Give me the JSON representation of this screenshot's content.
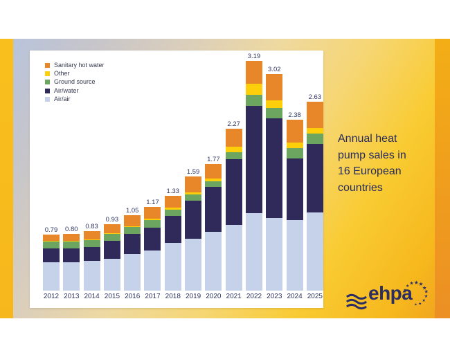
{
  "title": {
    "text": "Annual heat pump sales in 16 European countries"
  },
  "logo": {
    "text": "ehpa"
  },
  "colors": {
    "accent_gold": "#f6b81d",
    "accent_orange_strip": "#ec8f24",
    "card_blue": "#b6c3de",
    "text_navy": "#2e3560",
    "logo_navy": "#2b2d63",
    "panel_white": "#ffffff"
  },
  "chart_data": {
    "type": "bar",
    "stacked": true,
    "unit": "million units",
    "title": "",
    "xlabel": "",
    "ylabel": "",
    "grid": false,
    "legend_position": "top-left",
    "legend_order": [
      "Sanitary hot water",
      "Other",
      "Ground source",
      "Air/water",
      "Air/air"
    ],
    "categories": [
      "2012",
      "2013",
      "2014",
      "2015",
      "2016",
      "2017",
      "2018",
      "2019",
      "2020",
      "2021",
      "2022",
      "2023",
      "2024",
      "2025"
    ],
    "totals": [
      0.79,
      0.8,
      0.83,
      0.93,
      1.05,
      1.17,
      1.33,
      1.59,
      1.77,
      2.27,
      3.19,
      3.02,
      2.38,
      2.63
    ],
    "total_labels": [
      "0.79",
      "0.80",
      "0.83",
      "0.93",
      "1.05",
      "1.17",
      "1.33",
      "1.59",
      "1.77",
      "2.27",
      "3.19",
      "3.02",
      "2.38",
      "2.63"
    ],
    "series": [
      {
        "name": "Air/air",
        "color": "#c6d2ea",
        "values": [
          0.4,
          0.4,
          0.41,
          0.44,
          0.51,
          0.56,
          0.67,
          0.72,
          0.82,
          0.92,
          1.08,
          1.01,
          0.98,
          1.09
        ]
      },
      {
        "name": "Air/water",
        "color": "#2f2a59",
        "values": [
          0.19,
          0.19,
          0.19,
          0.25,
          0.28,
          0.32,
          0.38,
          0.53,
          0.63,
          0.92,
          1.49,
          1.39,
          0.86,
          0.95
        ]
      },
      {
        "name": "Ground source",
        "color": "#6ba55f",
        "values": [
          0.1,
          0.1,
          0.1,
          0.1,
          0.1,
          0.11,
          0.09,
          0.09,
          0.08,
          0.1,
          0.15,
          0.14,
          0.14,
          0.14
        ]
      },
      {
        "name": "Other",
        "color": "#fccf0a",
        "values": [
          0.01,
          0.01,
          0.01,
          0.01,
          0.01,
          0.02,
          0.03,
          0.03,
          0.04,
          0.08,
          0.15,
          0.11,
          0.08,
          0.08
        ]
      },
      {
        "name": "Sanitary hot water",
        "color": "#e8862a",
        "values": [
          0.09,
          0.1,
          0.12,
          0.13,
          0.15,
          0.16,
          0.16,
          0.22,
          0.2,
          0.25,
          0.32,
          0.37,
          0.32,
          0.37
        ]
      }
    ]
  }
}
